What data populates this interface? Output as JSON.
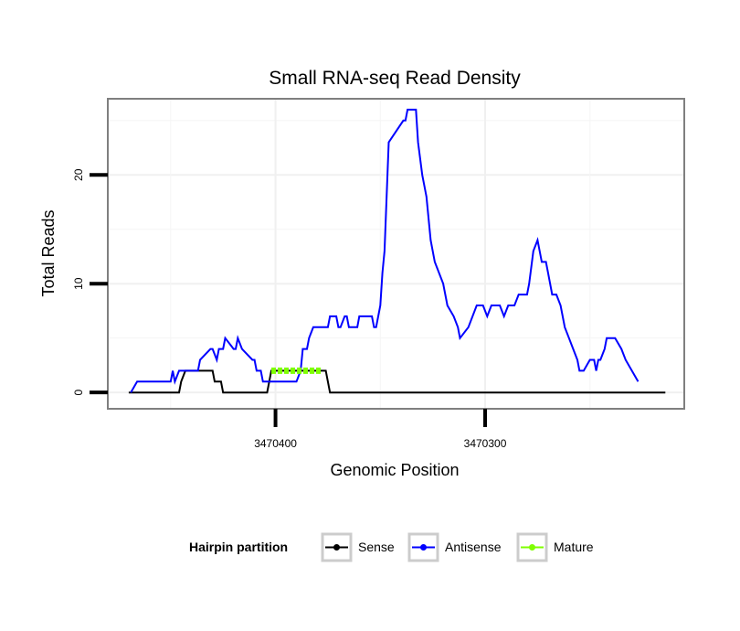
{
  "chart_data": {
    "type": "line",
    "title": "Small RNA-seq Read Density",
    "xlabel": "Genomic Position",
    "ylabel": "Total Reads",
    "x_reversed": true,
    "xlim": [
      3470480,
      3470205
    ],
    "ylim": [
      -1.5,
      27
    ],
    "x_ticks": [
      3470400,
      3470300
    ],
    "x_tick_labels": [
      "3470400",
      "3470300"
    ],
    "y_ticks": [
      0,
      10,
      20
    ],
    "y_tick_labels": [
      "0",
      "10",
      "20"
    ],
    "grid": true,
    "legend": {
      "title": "Hairpin partition",
      "placement": "bottom",
      "entries": [
        {
          "label": "Sense",
          "color": "#000000"
        },
        {
          "label": "Antisense",
          "color": "#0000ff"
        },
        {
          "label": "Mature",
          "color": "#7fff00"
        }
      ]
    },
    "series": [
      {
        "name": "Sense",
        "color": "#000000",
        "x": [
          3470470,
          3470446,
          3470445,
          3470443,
          3470430,
          3470429,
          3470426,
          3470425,
          3470424,
          3470423,
          3470404,
          3470403,
          3470402,
          3470401,
          3470376,
          3470375,
          3470374,
          3470373,
          3470214
        ],
        "y": [
          0,
          0,
          1,
          2,
          2,
          1,
          1,
          0,
          0,
          0,
          0,
          1,
          2,
          2,
          2,
          1,
          0,
          0,
          0
        ]
      },
      {
        "name": "Antisense",
        "color": "#0000ff",
        "x": [
          3470469,
          3470466,
          3470450,
          3470449,
          3470448,
          3470446,
          3470437,
          3470436,
          3470431,
          3470430,
          3470428,
          3470427,
          3470425,
          3470424,
          3470420,
          3470419,
          3470418,
          3470416,
          3470411,
          3470410,
          3470409,
          3470407,
          3470406,
          3470405,
          3470404,
          3470402,
          3470401,
          3470390,
          3470388,
          3470387,
          3470385,
          3470384,
          3470382,
          3470381,
          3470378,
          3470376,
          3470375,
          3470374,
          3470373,
          3470372,
          3470371,
          3470370,
          3470369,
          3470367,
          3470366,
          3470365,
          3470361,
          3470360,
          3470355,
          3470354,
          3470353,
          3470352,
          3470351,
          3470350,
          3470349,
          3470348,
          3470347,
          3470346,
          3470339,
          3470338,
          3470337,
          3470336,
          3470334,
          3470333,
          3470332,
          3470330,
          3470328,
          3470326,
          3470324,
          3470320,
          3470318,
          3470315,
          3470313,
          3470312,
          3470308,
          3470304,
          3470303,
          3470301,
          3470299,
          3470297,
          3470295,
          3470293,
          3470291,
          3470289,
          3470288,
          3470286,
          3470284,
          3470282,
          3470280,
          3470279,
          3470277,
          3470275,
          3470273,
          3470271,
          3470270,
          3470268,
          3470266,
          3470264,
          3470262,
          3470260,
          3470258,
          3470256,
          3470255,
          3470253,
          3470250,
          3470248,
          3470247,
          3470246,
          3470245,
          3470243,
          3470242,
          3470238,
          3470235,
          3470233,
          3470227
        ],
        "y": [
          0,
          1,
          1,
          2,
          1,
          2,
          2,
          3,
          4,
          4,
          3,
          4,
          4,
          5,
          4,
          4,
          5,
          4,
          3,
          3,
          2,
          2,
          1,
          1,
          1,
          1,
          1,
          1,
          2,
          4,
          4,
          5,
          6,
          6,
          6,
          6,
          6,
          7,
          7,
          7,
          7,
          6,
          6,
          7,
          7,
          6,
          6,
          7,
          7,
          7,
          6,
          6,
          7,
          8,
          11,
          13,
          18,
          23,
          25,
          25,
          26,
          26,
          26,
          26,
          23,
          20,
          18,
          14,
          12,
          10,
          8,
          7,
          6,
          5,
          6,
          8,
          8,
          8,
          7,
          8,
          8,
          8,
          7,
          8,
          8,
          8,
          9,
          9,
          9,
          10,
          13,
          14,
          12,
          12,
          11,
          9,
          9,
          8,
          6,
          5,
          4,
          3,
          2,
          2,
          3,
          3,
          2,
          3,
          3,
          4,
          5,
          5,
          4,
          3,
          1
        ]
      },
      {
        "name": "Mature",
        "color": "#7fff00",
        "x": [
          3470402,
          3470378
        ],
        "y": [
          2,
          2
        ]
      }
    ]
  }
}
